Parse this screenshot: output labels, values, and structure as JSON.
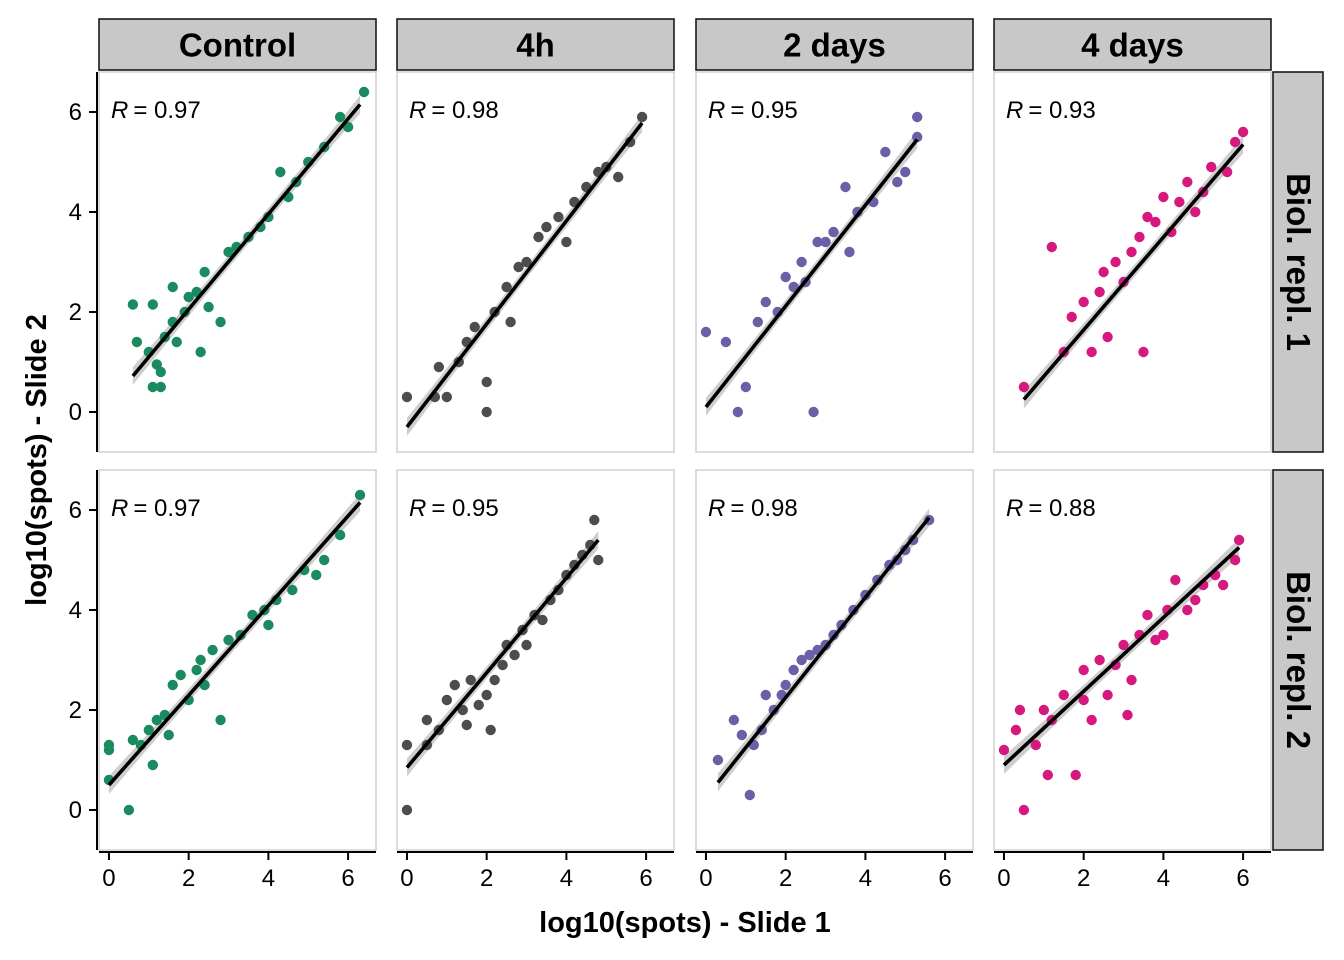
{
  "chart_data": {
    "type": "scatter",
    "xlabel": "log10(spots) - Slide 1",
    "ylabel": "log10(spots) - Slide 2",
    "column_facets": [
      "Control",
      "4h",
      "2 days",
      "4 days"
    ],
    "row_facets": [
      "Biol. repl. 1",
      "Biol. repl. 2"
    ],
    "xlim": [
      -0.25,
      6.7
    ],
    "ylim": [
      -0.8,
      6.8
    ],
    "x_ticks": [
      0,
      2,
      4,
      6
    ],
    "y_ticks": [
      0,
      2,
      4,
      6
    ],
    "regression": "linear fit with confidence band",
    "colors": {
      "Control": "#1b8a5f",
      "4h": "#4d4d4d",
      "2 days": "#6a60a8",
      "4 days": "#d6197e",
      "fit_line": "#000000",
      "band": "#bdbdbd",
      "strip_fill": "#c8c8c8"
    },
    "panels": [
      {
        "column": "Control",
        "row": "Biol. repl. 1",
        "r_label": "R",
        "r_value": "= 0.97",
        "fit": {
          "x": [
            0.6,
            6.3
          ],
          "y": [
            0.72,
            6.15
          ]
        },
        "points": [
          [
            0.6,
            2.15
          ],
          [
            0.7,
            1.4
          ],
          [
            1.0,
            1.2
          ],
          [
            1.1,
            2.15
          ],
          [
            1.1,
            0.5
          ],
          [
            1.2,
            0.95
          ],
          [
            1.3,
            0.5
          ],
          [
            1.3,
            0.8
          ],
          [
            1.4,
            1.5
          ],
          [
            1.6,
            1.8
          ],
          [
            1.6,
            2.5
          ],
          [
            1.7,
            1.4
          ],
          [
            1.9,
            2.0
          ],
          [
            2.0,
            2.3
          ],
          [
            2.2,
            2.4
          ],
          [
            2.3,
            1.2
          ],
          [
            2.4,
            2.8
          ],
          [
            2.5,
            2.1
          ],
          [
            2.8,
            1.8
          ],
          [
            3.0,
            3.2
          ],
          [
            3.2,
            3.3
          ],
          [
            3.5,
            3.5
          ],
          [
            3.8,
            3.7
          ],
          [
            4.0,
            3.9
          ],
          [
            4.3,
            4.8
          ],
          [
            4.5,
            4.3
          ],
          [
            4.7,
            4.6
          ],
          [
            5.0,
            5.0
          ],
          [
            5.4,
            5.3
          ],
          [
            5.8,
            5.9
          ],
          [
            6.0,
            5.7
          ],
          [
            6.4,
            6.4
          ]
        ]
      },
      {
        "column": "4h",
        "row": "Biol. repl. 1",
        "r_label": "R",
        "r_value": "= 0.98",
        "fit": {
          "x": [
            0.0,
            5.9
          ],
          "y": [
            -0.3,
            5.78
          ]
        },
        "points": [
          [
            0.0,
            0.3
          ],
          [
            0.7,
            0.3
          ],
          [
            0.8,
            0.9
          ],
          [
            1.0,
            0.3
          ],
          [
            1.3,
            1.0
          ],
          [
            1.5,
            1.4
          ],
          [
            1.7,
            1.7
          ],
          [
            2.0,
            0.6
          ],
          [
            2.0,
            0.0
          ],
          [
            2.2,
            2.0
          ],
          [
            2.5,
            2.5
          ],
          [
            2.6,
            1.8
          ],
          [
            2.8,
            2.9
          ],
          [
            3.0,
            3.0
          ],
          [
            3.3,
            3.5
          ],
          [
            3.5,
            3.7
          ],
          [
            3.8,
            3.9
          ],
          [
            4.0,
            3.4
          ],
          [
            4.2,
            4.2
          ],
          [
            4.5,
            4.5
          ],
          [
            4.8,
            4.8
          ],
          [
            5.0,
            4.9
          ],
          [
            5.3,
            4.7
          ],
          [
            5.6,
            5.4
          ],
          [
            5.9,
            5.9
          ]
        ]
      },
      {
        "column": "2 days",
        "row": "Biol. repl. 1",
        "r_label": "R",
        "r_value": "= 0.95",
        "fit": {
          "x": [
            0.0,
            5.3
          ],
          "y": [
            0.1,
            5.45
          ]
        },
        "points": [
          [
            0.0,
            1.6
          ],
          [
            0.5,
            1.4
          ],
          [
            0.8,
            0.0
          ],
          [
            1.0,
            0.5
          ],
          [
            1.3,
            1.8
          ],
          [
            1.5,
            2.2
          ],
          [
            1.8,
            2.0
          ],
          [
            2.0,
            2.7
          ],
          [
            2.2,
            2.5
          ],
          [
            2.4,
            3.0
          ],
          [
            2.5,
            2.6
          ],
          [
            2.7,
            0.0
          ],
          [
            2.8,
            3.4
          ],
          [
            3.0,
            3.4
          ],
          [
            3.2,
            3.6
          ],
          [
            3.5,
            4.5
          ],
          [
            3.6,
            3.2
          ],
          [
            3.8,
            4.0
          ],
          [
            4.2,
            4.2
          ],
          [
            4.5,
            5.2
          ],
          [
            4.8,
            4.6
          ],
          [
            5.0,
            4.8
          ],
          [
            5.3,
            5.9
          ],
          [
            5.3,
            5.5
          ]
        ]
      },
      {
        "column": "4 days",
        "row": "Biol. repl. 1",
        "r_label": "R",
        "r_value": "= 0.93",
        "fit": {
          "x": [
            0.5,
            6.0
          ],
          "y": [
            0.25,
            5.35
          ]
        },
        "points": [
          [
            0.5,
            0.5
          ],
          [
            1.2,
            3.3
          ],
          [
            1.5,
            1.2
          ],
          [
            1.7,
            1.9
          ],
          [
            2.0,
            2.2
          ],
          [
            2.2,
            1.2
          ],
          [
            2.4,
            2.4
          ],
          [
            2.5,
            2.8
          ],
          [
            2.6,
            1.5
          ],
          [
            2.8,
            3.0
          ],
          [
            3.0,
            2.6
          ],
          [
            3.2,
            3.2
          ],
          [
            3.4,
            3.5
          ],
          [
            3.5,
            1.2
          ],
          [
            3.6,
            3.9
          ],
          [
            3.8,
            3.8
          ],
          [
            4.0,
            4.3
          ],
          [
            4.2,
            3.6
          ],
          [
            4.4,
            4.2
          ],
          [
            4.6,
            4.6
          ],
          [
            4.8,
            4.0
          ],
          [
            5.0,
            4.4
          ],
          [
            5.2,
            4.9
          ],
          [
            5.6,
            4.8
          ],
          [
            5.8,
            5.4
          ],
          [
            6.0,
            5.6
          ]
        ]
      },
      {
        "column": "Control",
        "row": "Biol. repl. 2",
        "r_label": "R",
        "r_value": "= 0.97",
        "fit": {
          "x": [
            0.0,
            6.3
          ],
          "y": [
            0.5,
            6.15
          ]
        },
        "points": [
          [
            0.0,
            0.6
          ],
          [
            0.0,
            1.3
          ],
          [
            0.0,
            1.2
          ],
          [
            0.5,
            0.0
          ],
          [
            0.6,
            1.4
          ],
          [
            0.8,
            1.3
          ],
          [
            1.0,
            1.6
          ],
          [
            1.1,
            0.9
          ],
          [
            1.2,
            1.8
          ],
          [
            1.4,
            1.9
          ],
          [
            1.5,
            1.5
          ],
          [
            1.6,
            2.5
          ],
          [
            1.8,
            2.7
          ],
          [
            2.0,
            2.2
          ],
          [
            2.2,
            2.8
          ],
          [
            2.3,
            3.0
          ],
          [
            2.4,
            2.5
          ],
          [
            2.6,
            3.2
          ],
          [
            2.8,
            1.8
          ],
          [
            3.0,
            3.4
          ],
          [
            3.3,
            3.5
          ],
          [
            3.6,
            3.9
          ],
          [
            3.9,
            4.0
          ],
          [
            4.0,
            3.7
          ],
          [
            4.2,
            4.2
          ],
          [
            4.6,
            4.4
          ],
          [
            4.9,
            4.8
          ],
          [
            5.2,
            4.7
          ],
          [
            5.4,
            5.0
          ],
          [
            5.8,
            5.5
          ],
          [
            6.3,
            6.3
          ]
        ]
      },
      {
        "column": "4h",
        "row": "Biol. repl. 2",
        "r_label": "R",
        "r_value": "= 0.95",
        "fit": {
          "x": [
            0.0,
            4.8
          ],
          "y": [
            0.85,
            5.4
          ]
        },
        "points": [
          [
            0.0,
            0.0
          ],
          [
            0.0,
            1.3
          ],
          [
            0.5,
            1.3
          ],
          [
            0.5,
            1.8
          ],
          [
            0.8,
            1.6
          ],
          [
            1.0,
            2.2
          ],
          [
            1.2,
            2.5
          ],
          [
            1.4,
            2.0
          ],
          [
            1.5,
            1.7
          ],
          [
            1.6,
            2.6
          ],
          [
            1.8,
            2.1
          ],
          [
            2.0,
            2.3
          ],
          [
            2.1,
            1.6
          ],
          [
            2.2,
            2.6
          ],
          [
            2.4,
            2.9
          ],
          [
            2.5,
            3.3
          ],
          [
            2.7,
            3.1
          ],
          [
            2.9,
            3.6
          ],
          [
            3.0,
            3.3
          ],
          [
            3.2,
            3.9
          ],
          [
            3.4,
            3.8
          ],
          [
            3.6,
            4.2
          ],
          [
            3.8,
            4.4
          ],
          [
            4.0,
            4.7
          ],
          [
            4.2,
            4.9
          ],
          [
            4.4,
            5.1
          ],
          [
            4.6,
            5.3
          ],
          [
            4.7,
            5.8
          ],
          [
            4.8,
            5.0
          ]
        ]
      },
      {
        "column": "2 days",
        "row": "Biol. repl. 2",
        "r_label": "R",
        "r_value": "= 0.98",
        "fit": {
          "x": [
            0.3,
            5.6
          ],
          "y": [
            0.55,
            5.85
          ]
        },
        "points": [
          [
            0.3,
            1.0
          ],
          [
            0.7,
            1.8
          ],
          [
            0.9,
            1.5
          ],
          [
            1.1,
            0.3
          ],
          [
            1.2,
            1.3
          ],
          [
            1.4,
            1.6
          ],
          [
            1.5,
            2.3
          ],
          [
            1.7,
            2.0
          ],
          [
            1.9,
            2.3
          ],
          [
            2.0,
            2.5
          ],
          [
            2.2,
            2.8
          ],
          [
            2.4,
            3.0
          ],
          [
            2.6,
            3.1
          ],
          [
            2.8,
            3.2
          ],
          [
            3.0,
            3.3
          ],
          [
            3.2,
            3.5
          ],
          [
            3.4,
            3.7
          ],
          [
            3.7,
            4.0
          ],
          [
            4.0,
            4.3
          ],
          [
            4.3,
            4.6
          ],
          [
            4.6,
            4.9
          ],
          [
            4.8,
            5.0
          ],
          [
            5.0,
            5.2
          ],
          [
            5.2,
            5.4
          ],
          [
            5.6,
            5.8
          ]
        ]
      },
      {
        "column": "4 days",
        "row": "Biol. repl. 2",
        "r_label": "R",
        "r_value": "= 0.88",
        "fit": {
          "x": [
            0.0,
            5.9
          ],
          "y": [
            0.9,
            5.25
          ]
        },
        "points": [
          [
            0.0,
            1.2
          ],
          [
            0.3,
            1.6
          ],
          [
            0.4,
            2.0
          ],
          [
            0.5,
            0.0
          ],
          [
            0.8,
            1.3
          ],
          [
            1.0,
            2.0
          ],
          [
            1.1,
            0.7
          ],
          [
            1.2,
            1.8
          ],
          [
            1.5,
            2.3
          ],
          [
            1.8,
            0.7
          ],
          [
            2.0,
            2.2
          ],
          [
            2.0,
            2.8
          ],
          [
            2.2,
            1.8
          ],
          [
            2.4,
            3.0
          ],
          [
            2.6,
            2.3
          ],
          [
            2.8,
            2.9
          ],
          [
            3.0,
            3.3
          ],
          [
            3.1,
            1.9
          ],
          [
            3.2,
            2.6
          ],
          [
            3.4,
            3.5
          ],
          [
            3.6,
            3.9
          ],
          [
            3.8,
            3.4
          ],
          [
            4.0,
            3.5
          ],
          [
            4.1,
            4.0
          ],
          [
            4.3,
            4.6
          ],
          [
            4.6,
            4.0
          ],
          [
            4.8,
            4.2
          ],
          [
            5.0,
            4.5
          ],
          [
            5.3,
            4.7
          ],
          [
            5.5,
            4.5
          ],
          [
            5.8,
            5.0
          ],
          [
            5.9,
            5.4
          ]
        ]
      }
    ]
  }
}
